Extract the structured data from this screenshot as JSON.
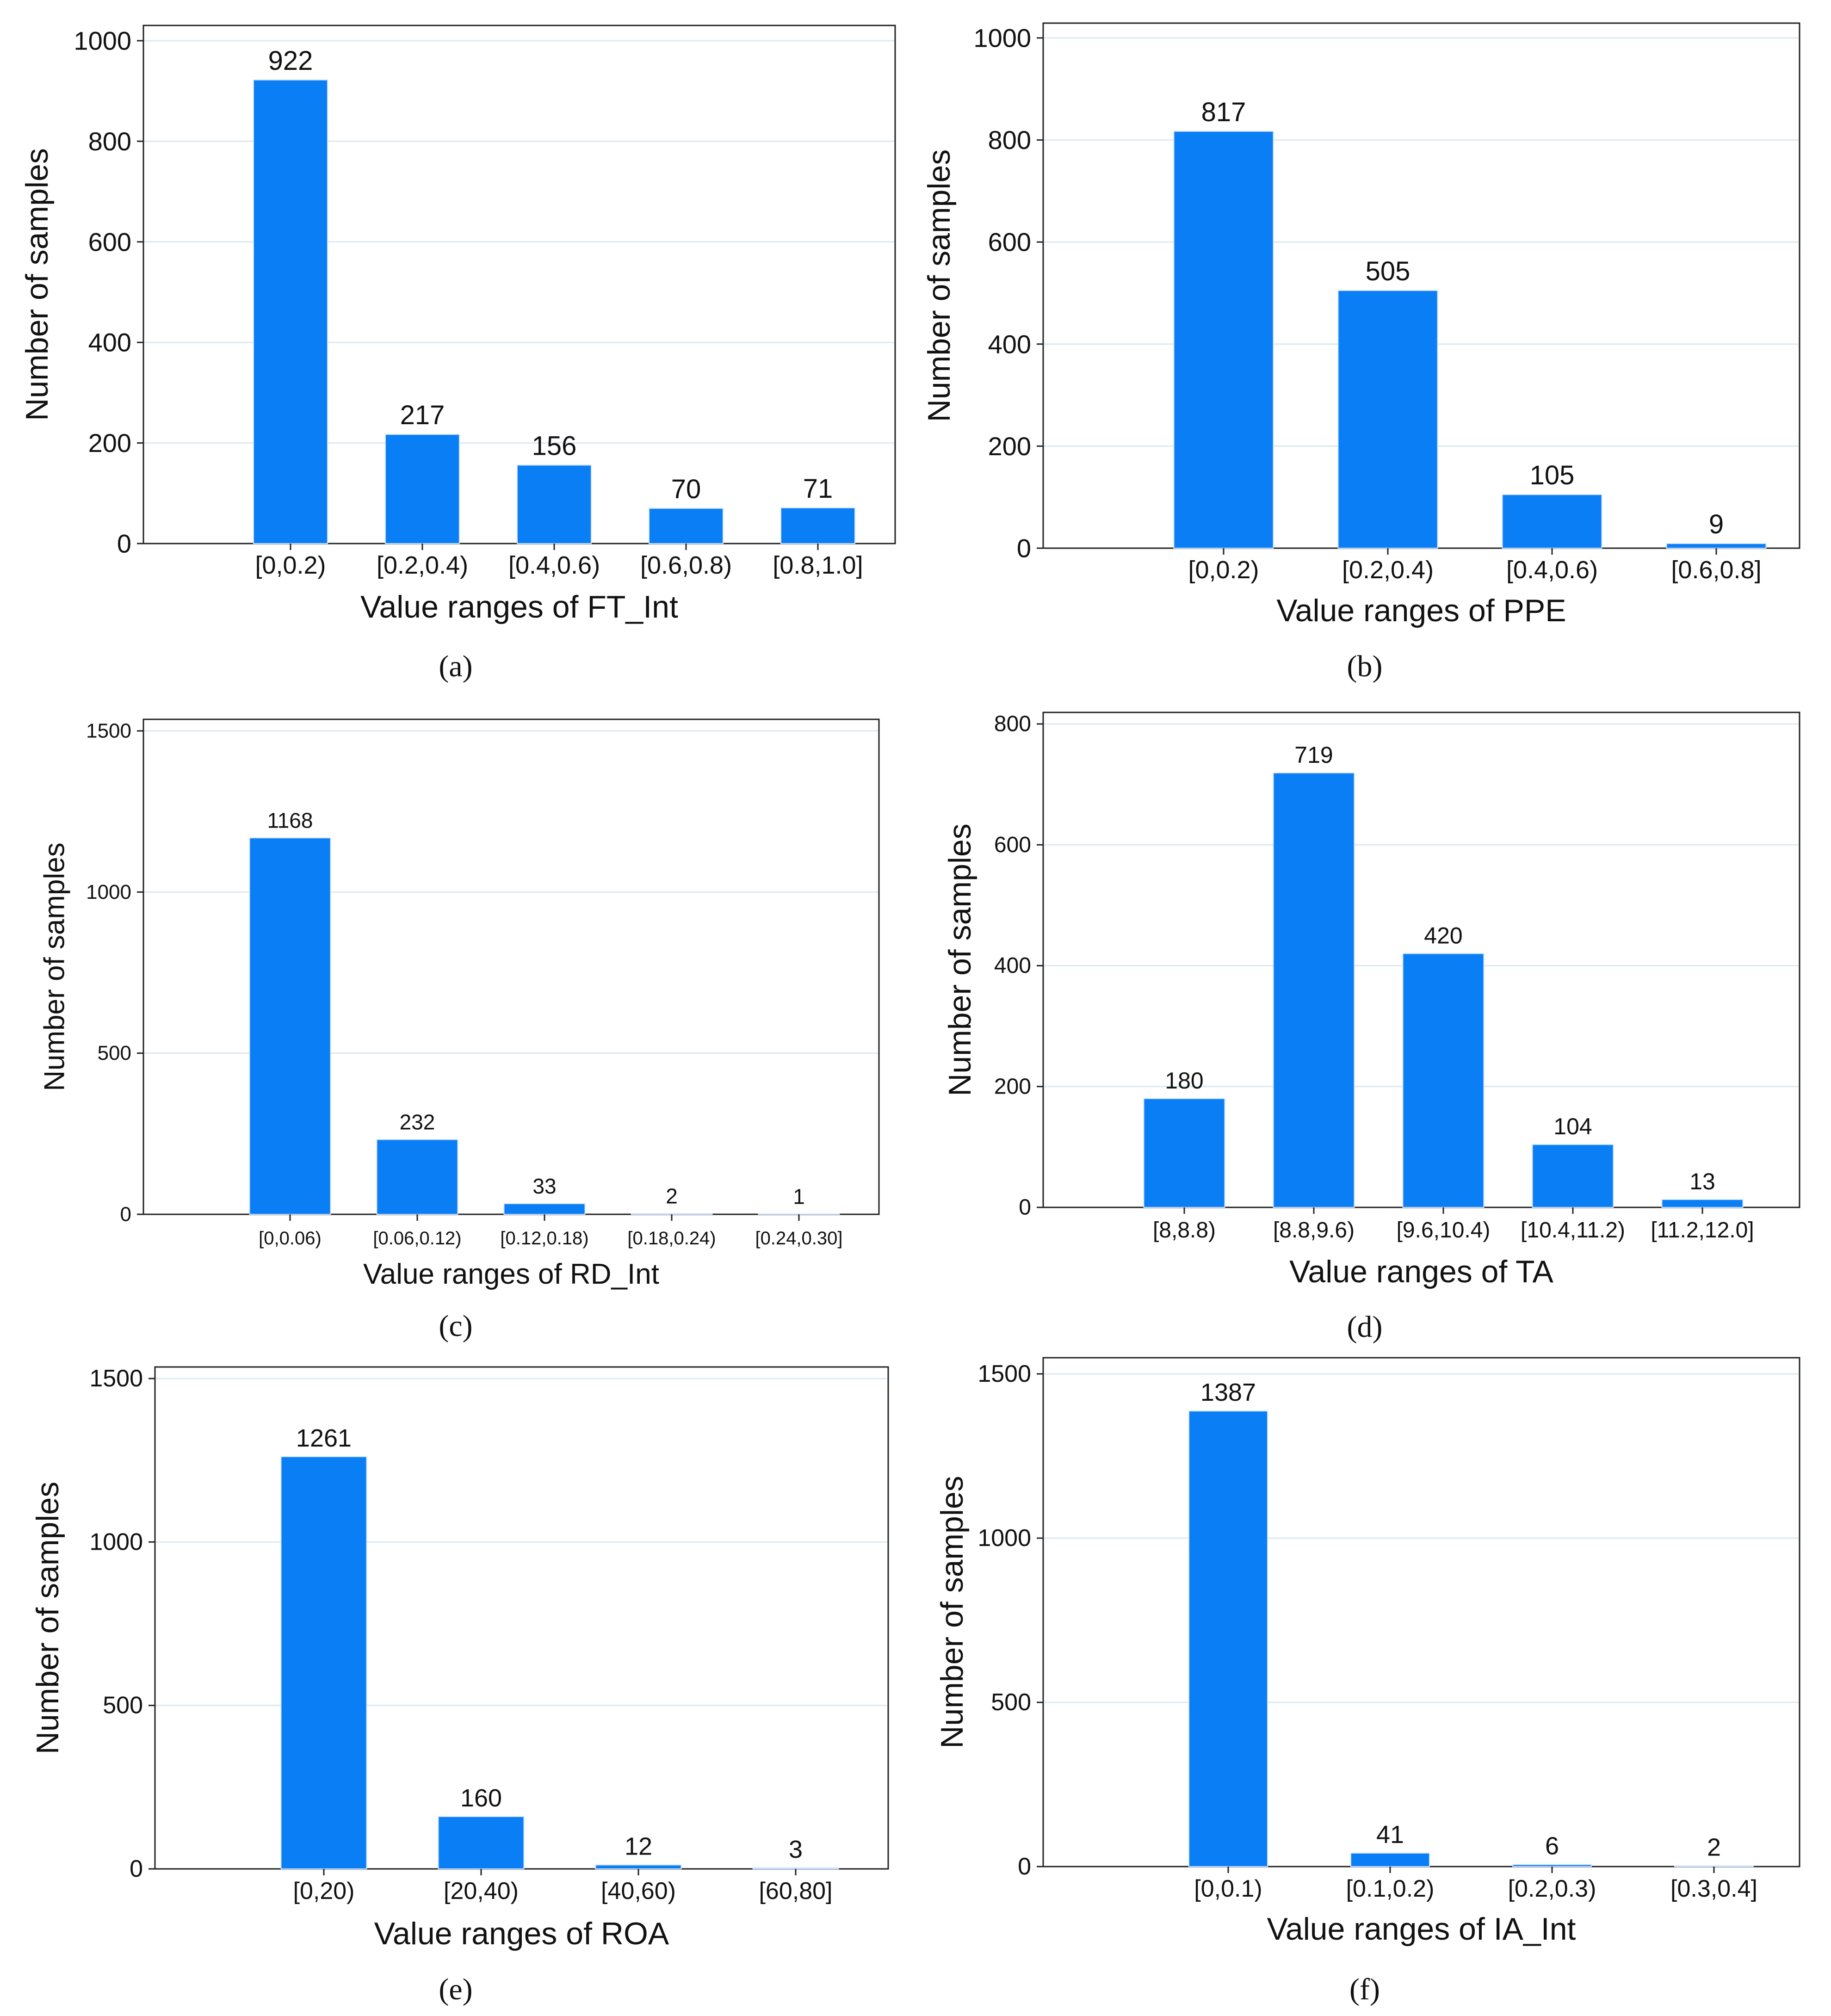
{
  "figure": {
    "panel_labels": [
      "(a)",
      "(b)",
      "(c)",
      "(d)",
      "(e)",
      "(f)"
    ]
  },
  "colors": {
    "bar": "#0A7FF5",
    "grid": "#DCEAF0",
    "frame": "#222222",
    "text": "#111111"
  },
  "chart_data": [
    {
      "type": "bar",
      "title": "",
      "xlabel": "Value ranges of FT_Int",
      "ylabel": "Number of samples",
      "categories": [
        "[0,0.2)",
        "[0.2,0.4)",
        "[0.4,0.6)",
        "[0.6,0.8)",
        "[0.8,1.0]"
      ],
      "values": [
        922,
        217,
        156,
        70,
        71
      ],
      "data_labels": [
        "922",
        "217",
        "156",
        "70",
        "71"
      ],
      "ylim": [
        0,
        1000
      ],
      "yticks": [
        0,
        200,
        400,
        600,
        800,
        1000
      ],
      "grid": true
    },
    {
      "type": "bar",
      "title": "",
      "xlabel": "Value ranges of PPE",
      "ylabel": "Number of samples",
      "categories": [
        "[0,0.2)",
        "[0.2,0.4)",
        "[0.4,0.6)",
        "[0.6,0.8]"
      ],
      "values": [
        817,
        505,
        105,
        9
      ],
      "data_labels": [
        "817",
        "505",
        "105",
        "9"
      ],
      "ylim": [
        0,
        1000
      ],
      "yticks": [
        0,
        200,
        400,
        600,
        800,
        1000
      ],
      "grid": true
    },
    {
      "type": "bar",
      "title": "",
      "xlabel": "Value ranges of RD_Int",
      "ylabel": "Number of samples",
      "categories": [
        "[0,0.06)",
        "[0.06,0.12)",
        "[0.12,0.18)",
        "[0.18,0.24)",
        "[0.24,0.30]"
      ],
      "values": [
        1168,
        232,
        33,
        2,
        1
      ],
      "data_labels": [
        "1168",
        "232",
        "33",
        "2",
        "1"
      ],
      "ylim": [
        0,
        1500
      ],
      "yticks": [
        0,
        500,
        1000,
        1500
      ],
      "grid": true
    },
    {
      "type": "bar",
      "title": "",
      "xlabel": "Value ranges of TA",
      "ylabel": "Number of samples",
      "categories": [
        "[8,8.8)",
        "[8.8,9.6)",
        "[9.6,10.4)",
        "[10.4,11.2)",
        "[11.2,12.0]"
      ],
      "values": [
        180,
        719,
        420,
        104,
        13
      ],
      "data_labels": [
        "180",
        "719",
        "420",
        "104",
        "13"
      ],
      "ylim": [
        0,
        800
      ],
      "yticks": [
        0,
        200,
        400,
        600,
        800
      ],
      "grid": true
    },
    {
      "type": "bar",
      "title": "",
      "xlabel": "Value ranges of ROA",
      "ylabel": "Number of samples",
      "categories": [
        "[0,20)",
        "[20,40)",
        "[40,60)",
        "[60,80]"
      ],
      "values": [
        1261,
        160,
        12,
        3
      ],
      "data_labels": [
        "1261",
        "160",
        "12",
        "3"
      ],
      "ylim": [
        0,
        1500
      ],
      "yticks": [
        0,
        500,
        1000,
        1500
      ],
      "grid": true
    },
    {
      "type": "bar",
      "title": "",
      "xlabel": "Value ranges of IA_Int",
      "ylabel": "Number of samples",
      "categories": [
        "[0,0.1)",
        "[0.1,0.2)",
        "[0.2,0.3)",
        "[0.3,0.4]"
      ],
      "values": [
        1387,
        41,
        6,
        2
      ],
      "data_labels": [
        "1387",
        "41",
        "6",
        "2"
      ],
      "ylim": [
        0,
        1500
      ],
      "yticks": [
        0,
        500,
        1000,
        1500
      ],
      "grid": true
    }
  ]
}
